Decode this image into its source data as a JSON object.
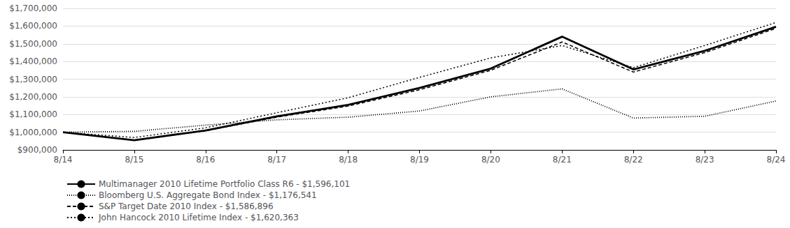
{
  "chart_data": {
    "type": "line",
    "categories": [
      "8/14",
      "8/15",
      "8/16",
      "8/17",
      "8/18",
      "8/19",
      "8/20",
      "8/21",
      "8/22",
      "8/23",
      "8/24"
    ],
    "series": [
      {
        "name": "Multimanager 2010 Lifetime Portfolio Class R6 - $1,596,101",
        "color": "#000000",
        "line_style": "solid",
        "values": [
          1000000,
          955000,
          1010000,
          1090000,
          1155000,
          1250000,
          1360000,
          1540000,
          1355000,
          1460000,
          1596101
        ]
      },
      {
        "name": "Bloomberg U.S. Aggregate Bond Index - $1,176,541",
        "color": "#000000",
        "line_style": "densely_dotted",
        "values": [
          1000000,
          1005000,
          1040000,
          1070000,
          1085000,
          1120000,
          1200000,
          1245000,
          1080000,
          1090000,
          1176541
        ]
      },
      {
        "name": "S&P Target Date 2010 Index - $1,586,896",
        "color": "#000000",
        "line_style": "dashed",
        "values": [
          1000000,
          955000,
          1008000,
          1085000,
          1148000,
          1240000,
          1350000,
          1510000,
          1340000,
          1450000,
          1586896
        ]
      },
      {
        "name": "John Hancock 2010 Lifetime Index - $1,620,363",
        "color": "#000000",
        "line_style": "loosely_dotted",
        "values": [
          1000000,
          970000,
          1025000,
          1110000,
          1195000,
          1310000,
          1420000,
          1490000,
          1365000,
          1490000,
          1620363
        ]
      }
    ],
    "ylim": [
      900000,
      1700000
    ],
    "yticks": [
      {
        "value": 900000,
        "label": "$900,000"
      },
      {
        "value": 1000000,
        "label": "$1,000,000"
      },
      {
        "value": 1100000,
        "label": "$1,100,000"
      },
      {
        "value": 1200000,
        "label": "$1,200,000"
      },
      {
        "value": 1300000,
        "label": "$1,300,000"
      },
      {
        "value": 1400000,
        "label": "$1,400,000"
      },
      {
        "value": 1500000,
        "label": "$1,500,000"
      },
      {
        "value": 1600000,
        "label": "$1,600,000"
      },
      {
        "value": 1700000,
        "label": "$1,700,000"
      }
    ],
    "grid": true,
    "legend": "bottom"
  }
}
